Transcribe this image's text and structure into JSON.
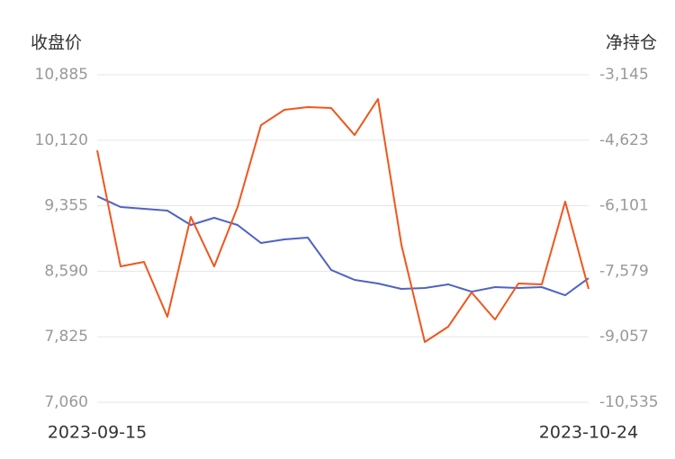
{
  "chart_data": {
    "type": "line",
    "ylabel": "收盘价",
    "y2label": "净持仓",
    "categories": [
      "2023-09-15",
      null,
      null,
      null,
      null,
      null,
      null,
      null,
      null,
      null,
      null,
      null,
      null,
      null,
      null,
      null,
      null,
      null,
      null,
      null,
      null,
      "2023-10-24"
    ],
    "series": [
      {
        "color": "#4e63c4",
        "axis": "y",
        "values": [
          9466,
          9340,
          9319,
          9298,
          9130,
          9214,
          9130,
          8920,
          8962,
          8983,
          8605,
          8489,
          8447,
          8384,
          8395,
          8437,
          8352,
          8405,
          8395,
          8405,
          8310,
          8510
        ]
      },
      {
        "color": "#f0561d",
        "axis": "y2",
        "values": [
          -4851,
          -7470,
          -7368,
          -8606,
          -6353,
          -7470,
          -6130,
          -4283,
          -3937,
          -3877,
          -3897,
          -4506,
          -3694,
          -6982,
          -9175,
          -8830,
          -8058,
          -8667,
          -7855,
          -7876,
          -6008,
          -7977
        ]
      }
    ],
    "ylim": [
      7060,
      10885
    ],
    "yticks": [
      {
        "value": 7060,
        "label": "7,060"
      },
      {
        "value": 7825,
        "label": "7,825"
      },
      {
        "value": 8590,
        "label": "8,590"
      },
      {
        "value": 9355,
        "label": "9,355"
      },
      {
        "value": 10120,
        "label": "10,120"
      },
      {
        "value": 10885,
        "label": "10,885"
      }
    ],
    "y2lim": [
      -10535,
      -3145
    ],
    "y2ticks": [
      {
        "value": -10535,
        "label": "-10,535"
      },
      {
        "value": -9057,
        "label": "-9,057"
      },
      {
        "value": -7579,
        "label": "-7,579"
      },
      {
        "value": -6101,
        "label": "-6,101"
      },
      {
        "value": -4623,
        "label": "-4,623"
      },
      {
        "value": -3145,
        "label": "-3,145"
      }
    ],
    "grid": true
  }
}
